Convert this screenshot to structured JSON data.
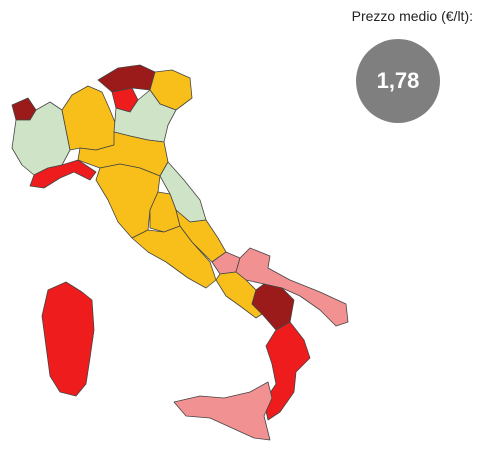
{
  "header": {
    "label": "Prezzo medio (€/lt):",
    "value": "1,78"
  }
}
